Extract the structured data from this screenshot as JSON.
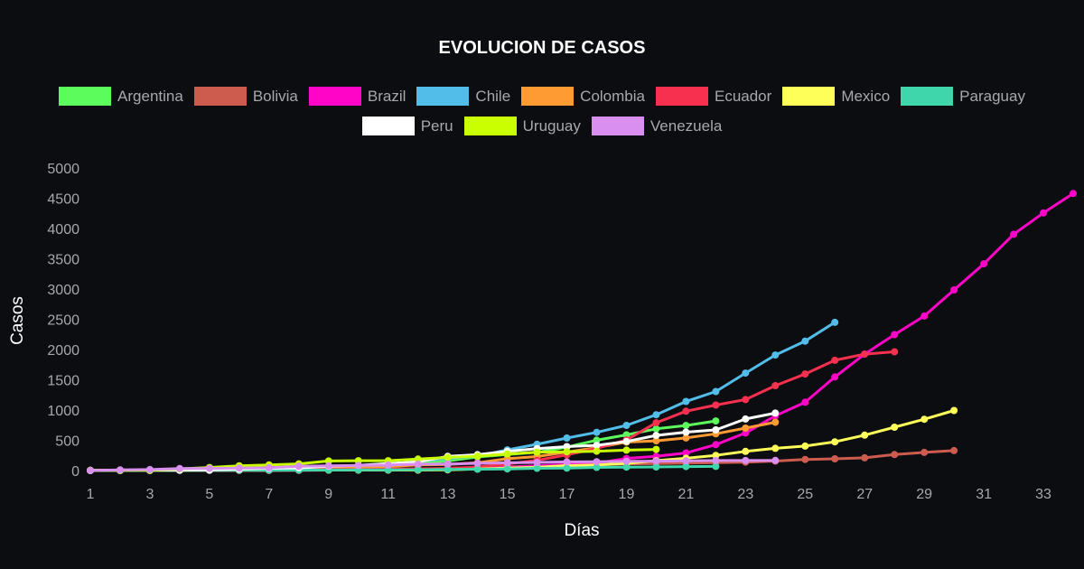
{
  "chart_data": {
    "type": "line",
    "title": "EVOLUCION DE CASOS",
    "xlabel": "Días",
    "ylabel": "Casos",
    "xlim": [
      1,
      34
    ],
    "ylim": [
      0,
      5000
    ],
    "x_ticks": [
      1,
      3,
      5,
      7,
      9,
      11,
      13,
      15,
      17,
      19,
      21,
      23,
      25,
      27,
      29,
      31,
      33
    ],
    "y_ticks": [
      0,
      500,
      1000,
      1500,
      2000,
      2500,
      3000,
      3500,
      4000,
      4500,
      5000
    ],
    "legend_position": "top",
    "grid": false,
    "series": [
      {
        "name": "Argentina",
        "color": "#5dfc5d",
        "values": [
          1,
          2,
          5,
          12,
          17,
          19,
          30,
          45,
          65,
          79,
          97,
          128,
          158,
          225,
          266,
          301,
          387,
          502,
          589,
          690,
          745,
          820
        ]
      },
      {
        "name": "Bolivia",
        "color": "#cd5c4f",
        "values": [
          2,
          2,
          2,
          3,
          10,
          10,
          12,
          15,
          19,
          24,
          27,
          29,
          32,
          43,
          61,
          74,
          81,
          97,
          107,
          115,
          123,
          132,
          139,
          157,
          183,
          194,
          210,
          264,
          300,
          330
        ]
      },
      {
        "name": "Brazil",
        "color": "#ff05c8",
        "values": [
          1,
          1,
          1,
          2,
          2,
          2,
          2,
          3,
          8,
          13,
          19,
          25,
          25,
          34,
          52,
          77,
          98,
          121,
          200,
          234,
          291,
          428,
          621,
          904,
          1128,
          1546,
          1924,
          2247,
          2554,
          2985,
          3417,
          3904,
          4256,
          4579
        ]
      },
      {
        "name": "Chile",
        "color": "#52bde8",
        "values": [
          1,
          4,
          5,
          7,
          10,
          12,
          17,
          23,
          43,
          61,
          75,
          155,
          201,
          238,
          342,
          434,
          537,
          632,
          746,
          922,
          1142,
          1306,
          1610,
          1909,
          2139,
          2449
        ]
      },
      {
        "name": "Colombia",
        "color": "#ff9b32",
        "values": [
          1,
          1,
          1,
          3,
          9,
          9,
          13,
          22,
          34,
          54,
          65,
          93,
          102,
          128,
          196,
          231,
          306,
          378,
          470,
          491,
          539,
          608,
          702,
          798
        ]
      },
      {
        "name": "Ecuador",
        "color": "#f7304f",
        "values": [
          1,
          6,
          7,
          10,
          13,
          14,
          15,
          15,
          17,
          17,
          23,
          28,
          37,
          58,
          111,
          168,
          260,
          367,
          506,
          789,
          981,
          1082,
          1173,
          1403,
          1595,
          1823,
          1924,
          1962
        ]
      },
      {
        "name": "Mexico",
        "color": "#ffff5a",
        "values": [
          3,
          4,
          5,
          5,
          5,
          5,
          5,
          6,
          7,
          7,
          7,
          8,
          12,
          26,
          41,
          53,
          82,
          93,
          118,
          164,
          203,
          251,
          316,
          367,
          405,
          475,
          585,
          717,
          848,
          993
        ]
      },
      {
        "name": "Paraguay",
        "color": "#3ed6aa",
        "values": [
          1,
          2,
          2,
          5,
          5,
          6,
          6,
          8,
          9,
          11,
          11,
          13,
          18,
          22,
          27,
          37,
          41,
          52,
          56,
          59,
          65,
          69
        ]
      },
      {
        "name": "Peru",
        "color": "#ffffff",
        "values": [
          1,
          6,
          7,
          9,
          11,
          22,
          38,
          43,
          71,
          86,
          117,
          145,
          234,
          263,
          318,
          363,
          395,
          416,
          480,
          580,
          635,
          671,
          852,
          950
        ]
      },
      {
        "name": "Uruguay",
        "color": "#c9ff00",
        "values": [
          4,
          6,
          8,
          29,
          50,
          79,
          94,
          110,
          158,
          162,
          162,
          189,
          217,
          238,
          274,
          304,
          310,
          320,
          338,
          350
        ]
      },
      {
        "name": "Venezuela",
        "color": "#d98ff0",
        "values": [
          2,
          10,
          17,
          33,
          36,
          42,
          46,
          70,
          77,
          84,
          91,
          106,
          107,
          119,
          129,
          135,
          143,
          146,
          153,
          155,
          159,
          165,
          166,
          167
        ]
      }
    ]
  }
}
